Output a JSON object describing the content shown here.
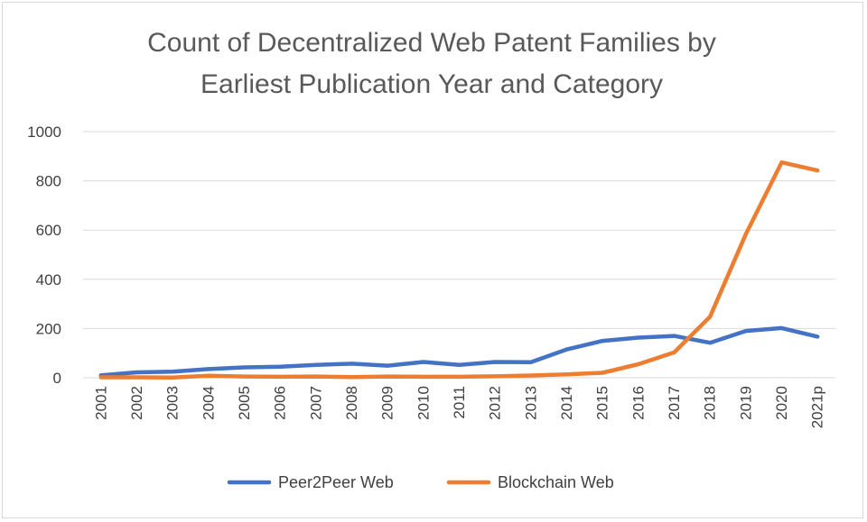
{
  "chart_data": {
    "type": "line",
    "title_lines": [
      "Count of Decentralized Web Patent Families by",
      "Earliest Publication Year and Category"
    ],
    "categories": [
      "2001",
      "2002",
      "2003",
      "2004",
      "2005",
      "2006",
      "2007",
      "2008",
      "2009",
      "2010",
      "2011",
      "2012",
      "2013",
      "2014",
      "2015",
      "2016",
      "2017",
      "2018",
      "2019",
      "2020",
      "2021p"
    ],
    "ylim": [
      0,
      1000
    ],
    "yticks": [
      0,
      200,
      400,
      600,
      800,
      1000
    ],
    "grid": true,
    "legend_position": "bottom",
    "series": [
      {
        "name": "Peer2Peer Web",
        "color": "#4472C4",
        "values": [
          10,
          22,
          25,
          35,
          42,
          45,
          52,
          57,
          49,
          64,
          52,
          64,
          63,
          115,
          150,
          163,
          170,
          142,
          190,
          202,
          167
        ]
      },
      {
        "name": "Blockchain Web",
        "color": "#ED7D31",
        "values": [
          2,
          2,
          1,
          8,
          5,
          4,
          5,
          3,
          5,
          4,
          4,
          6,
          9,
          14,
          20,
          55,
          103,
          248,
          583,
          875,
          842
        ]
      }
    ]
  }
}
